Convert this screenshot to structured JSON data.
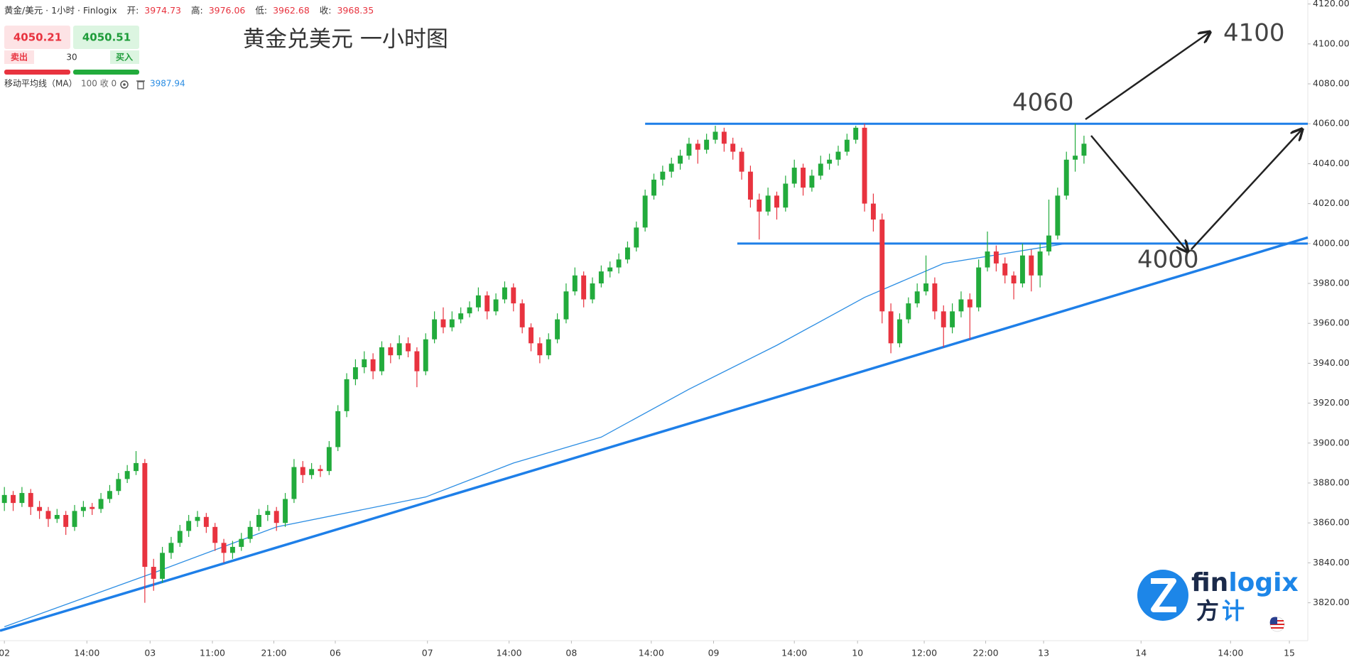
{
  "header": {
    "symbol": "黄金/美元 · 1小时 · Finlogix",
    "open_label": "开:",
    "open": 3974.73,
    "high_label": "高:",
    "high": 3976.06,
    "low_label": "低:",
    "low": 3962.68,
    "close_label": "收:",
    "close": 3968.35
  },
  "trade": {
    "sell_price": 4050.21,
    "buy_price": 4050.51,
    "sell": "卖出",
    "spread": 30,
    "buy": "买入"
  },
  "indicator": {
    "name": "移动平均线（MA）",
    "params": "100 收 0",
    "value": 3987.94
  },
  "logo": {
    "brand": [
      "fin",
      "logix"
    ],
    "brand_cn": [
      "方",
      "计"
    ]
  },
  "chart_data": {
    "type": "candlestick",
    "title": "黄金兑美元 一小时图",
    "up_color": "#22ab3c",
    "down_color": "#e8333f",
    "line_color": "#1e7fe8",
    "xlim": [
      -0.5,
      148.5
    ],
    "xticks": [
      {
        "value": 0,
        "label": "02"
      },
      {
        "value": 9.4,
        "label": "14:00"
      },
      {
        "value": 16.6,
        "label": "03"
      },
      {
        "value": 23.7,
        "label": "11:00"
      },
      {
        "value": 30.7,
        "label": "21:00"
      },
      {
        "value": 37.7,
        "label": "06"
      },
      {
        "value": 48.2,
        "label": "07"
      },
      {
        "value": 57.5,
        "label": "14:00"
      },
      {
        "value": 64.6,
        "label": "08"
      },
      {
        "value": 73.7,
        "label": "14:00"
      },
      {
        "value": 80.8,
        "label": "09"
      },
      {
        "value": 90,
        "label": "14:00"
      },
      {
        "value": 97.2,
        "label": "10"
      },
      {
        "value": 104.8,
        "label": "12:00"
      },
      {
        "value": 111.8,
        "label": "22:00"
      },
      {
        "value": 118.4,
        "label": "13"
      },
      {
        "value": 129.5,
        "label": "14"
      },
      {
        "value": 139.7,
        "label": "14:00"
      },
      {
        "value": 146.4,
        "label": "15"
      }
    ],
    "ylim": [
      3801,
      4122
    ],
    "yticks": [
      {
        "value": 3820,
        "label": "3820.00"
      },
      {
        "value": 3840,
        "label": "3840.00"
      },
      {
        "value": 3860,
        "label": "3860.00"
      },
      {
        "value": 3880,
        "label": "3880.00"
      },
      {
        "value": 3900,
        "label": "3900.00"
      },
      {
        "value": 3920,
        "label": "3920.00"
      },
      {
        "value": 3940,
        "label": "3940.00"
      },
      {
        "value": 3960,
        "label": "3960.00"
      },
      {
        "value": 3980,
        "label": "3980.00"
      },
      {
        "value": 4000,
        "label": "4000.00"
      },
      {
        "value": 4020,
        "label": "4020.00"
      },
      {
        "value": 4040,
        "label": "4040.00"
      },
      {
        "value": 4060,
        "label": "4060.00"
      },
      {
        "value": 4080,
        "label": "4080.00"
      },
      {
        "value": 4100,
        "label": "4100.00"
      },
      {
        "value": 4120,
        "label": "4120.00"
      }
    ],
    "ohlc": [
      [
        3870,
        3878,
        3866,
        3874
      ],
      [
        3874,
        3876,
        3866,
        3870
      ],
      [
        3870,
        3878,
        3868,
        3875
      ],
      [
        3875,
        3877,
        3864,
        3868
      ],
      [
        3868,
        3871,
        3862,
        3866
      ],
      [
        3866,
        3868,
        3858,
        3862
      ],
      [
        3862,
        3867,
        3860,
        3864
      ],
      [
        3864,
        3866,
        3854,
        3858
      ],
      [
        3858,
        3869,
        3856,
        3866
      ],
      [
        3866,
        3871,
        3863,
        3868
      ],
      [
        3868,
        3870,
        3864,
        3867
      ],
      [
        3867,
        3875,
        3865,
        3872
      ],
      [
        3872,
        3879,
        3870,
        3876
      ],
      [
        3876,
        3885,
        3874,
        3882
      ],
      [
        3882,
        3889,
        3880,
        3886
      ],
      [
        3886,
        3896,
        3884,
        3890
      ],
      [
        3890,
        3892,
        3820,
        3838
      ],
      [
        3838,
        3842,
        3826,
        3832
      ],
      [
        3832,
        3848,
        3830,
        3845
      ],
      [
        3845,
        3853,
        3842,
        3850
      ],
      [
        3850,
        3859,
        3848,
        3856
      ],
      [
        3856,
        3864,
        3853,
        3861
      ],
      [
        3861,
        3866,
        3858,
        3863
      ],
      [
        3863,
        3865,
        3855,
        3858
      ],
      [
        3858,
        3860,
        3846,
        3850
      ],
      [
        3850,
        3852,
        3840,
        3845
      ],
      [
        3845,
        3851,
        3842,
        3848
      ],
      [
        3848,
        3855,
        3846,
        3852
      ],
      [
        3852,
        3861,
        3850,
        3858
      ],
      [
        3858,
        3867,
        3856,
        3864
      ],
      [
        3864,
        3869,
        3861,
        3866
      ],
      [
        3866,
        3868,
        3856,
        3860
      ],
      [
        3860,
        3875,
        3858,
        3872
      ],
      [
        3872,
        3892,
        3870,
        3888
      ],
      [
        3888,
        3891,
        3880,
        3884
      ],
      [
        3884,
        3890,
        3882,
        3887
      ],
      [
        3887,
        3889,
        3883,
        3886
      ],
      [
        3886,
        3901,
        3884,
        3898
      ],
      [
        3898,
        3919,
        3896,
        3916
      ],
      [
        3916,
        3935,
        3913,
        3932
      ],
      [
        3932,
        3942,
        3929,
        3938
      ],
      [
        3938,
        3946,
        3935,
        3942
      ],
      [
        3942,
        3945,
        3932,
        3936
      ],
      [
        3936,
        3951,
        3934,
        3948
      ],
      [
        3948,
        3950,
        3940,
        3944
      ],
      [
        3944,
        3954,
        3942,
        3950
      ],
      [
        3950,
        3953,
        3943,
        3946
      ],
      [
        3946,
        3948,
        3928,
        3936
      ],
      [
        3936,
        3955,
        3934,
        3952
      ],
      [
        3952,
        3966,
        3950,
        3962
      ],
      [
        3962,
        3968,
        3955,
        3958
      ],
      [
        3958,
        3966,
        3956,
        3962
      ],
      [
        3962,
        3968,
        3960,
        3965
      ],
      [
        3965,
        3971,
        3963,
        3968
      ],
      [
        3968,
        3978,
        3966,
        3974
      ],
      [
        3974,
        3976,
        3962,
        3966
      ],
      [
        3966,
        3975,
        3964,
        3972
      ],
      [
        3972,
        3981,
        3970,
        3978
      ],
      [
        3978,
        3980,
        3966,
        3970
      ],
      [
        3970,
        3972,
        3955,
        3958
      ],
      [
        3958,
        3960,
        3946,
        3950
      ],
      [
        3950,
        3953,
        3940,
        3944
      ],
      [
        3944,
        3955,
        3942,
        3952
      ],
      [
        3952,
        3965,
        3950,
        3962
      ],
      [
        3962,
        3980,
        3960,
        3976
      ],
      [
        3976,
        3988,
        3974,
        3984
      ],
      [
        3984,
        3986,
        3968,
        3972
      ],
      [
        3972,
        3983,
        3970,
        3980
      ],
      [
        3980,
        3989,
        3978,
        3986
      ],
      [
        3986,
        3991,
        3983,
        3988
      ],
      [
        3988,
        3995,
        3985,
        3992
      ],
      [
        3992,
        4001,
        3990,
        3998
      ],
      [
        3998,
        4011,
        3996,
        4008
      ],
      [
        4008,
        4027,
        4006,
        4024
      ],
      [
        4024,
        4035,
        4022,
        4032
      ],
      [
        4032,
        4039,
        4029,
        4036
      ],
      [
        4036,
        4043,
        4033,
        4040
      ],
      [
        4040,
        4047,
        4037,
        4044
      ],
      [
        4044,
        4053,
        4042,
        4050
      ],
      [
        4050,
        4052,
        4040,
        4047
      ],
      [
        4047,
        4055,
        4045,
        4052
      ],
      [
        4052,
        4059,
        4050,
        4056
      ],
      [
        4056,
        4058,
        4046,
        4050
      ],
      [
        4050,
        4053,
        4042,
        4046
      ],
      [
        4046,
        4048,
        4032,
        4036
      ],
      [
        4036,
        4039,
        4018,
        4022
      ],
      [
        4022,
        4025,
        4002,
        4016
      ],
      [
        4016,
        4028,
        4014,
        4024
      ],
      [
        4024,
        4026,
        4012,
        4018
      ],
      [
        4018,
        4034,
        4016,
        4030
      ],
      [
        4030,
        4042,
        4028,
        4038
      ],
      [
        4038,
        4040,
        4024,
        4028
      ],
      [
        4028,
        4037,
        4026,
        4034
      ],
      [
        4034,
        4044,
        4032,
        4040
      ],
      [
        4040,
        4045,
        4037,
        4042
      ],
      [
        4042,
        4049,
        4039,
        4046
      ],
      [
        4046,
        4055,
        4044,
        4052
      ],
      [
        4052,
        4059,
        4050,
        4058
      ],
      [
        4058,
        4060,
        4016,
        4020
      ],
      [
        4020,
        4025,
        4006,
        4012
      ],
      [
        4012,
        4015,
        3960,
        3966
      ],
      [
        3966,
        3970,
        3945,
        3950
      ],
      [
        3950,
        3965,
        3948,
        3962
      ],
      [
        3962,
        3973,
        3960,
        3970
      ],
      [
        3970,
        3980,
        3968,
        3976
      ],
      [
        3976,
        3994,
        3974,
        3980
      ],
      [
        3980,
        3983,
        3962,
        3966
      ],
      [
        3966,
        3969,
        3948,
        3958
      ],
      [
        3958,
        3970,
        3955,
        3966
      ],
      [
        3966,
        3976,
        3963,
        3972
      ],
      [
        3972,
        3975,
        3952,
        3968
      ],
      [
        3968,
        3992,
        3966,
        3988
      ],
      [
        3988,
        4006,
        3986,
        3996
      ],
      [
        3996,
        3999,
        3986,
        3990
      ],
      [
        3990,
        3993,
        3980,
        3984
      ],
      [
        3984,
        3986,
        3972,
        3980
      ],
      [
        3980,
        4000,
        3978,
        3994
      ],
      [
        3994,
        3997,
        3976,
        3984
      ],
      [
        3984,
        4000,
        3978,
        3996
      ],
      [
        3996,
        4022,
        3994,
        4004
      ],
      [
        4004,
        4028,
        4002,
        4024
      ],
      [
        4024,
        4046,
        4022,
        4042
      ],
      [
        4042,
        4060,
        4036,
        4044
      ],
      [
        4044,
        4054,
        4040,
        4050
      ]
    ],
    "ma": {
      "color": "#2b8de3",
      "x": [
        0,
        17,
        31,
        48,
        58,
        68,
        78,
        88,
        98,
        107,
        121
      ],
      "values": [
        3808,
        3835,
        3858,
        3873,
        3890,
        3903,
        3927,
        3949,
        3973,
        3990,
        4000
      ]
    },
    "levels": [
      {
        "value": 4060,
        "from": 73
      },
      {
        "value": 4000,
        "from": 83.5
      }
    ],
    "trendline": {
      "x": [
        -0.5,
        148.5
      ],
      "values": [
        3806,
        4003
      ]
    },
    "annotations": [
      4100,
      4060,
      4000
    ]
  }
}
